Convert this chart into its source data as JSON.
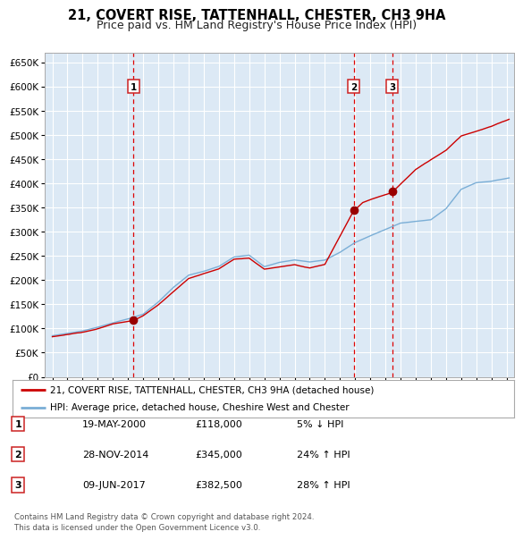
{
  "title": "21, COVERT RISE, TATTENHALL, CHESTER, CH3 9HA",
  "subtitle": "Price paid vs. HM Land Registry's House Price Index (HPI)",
  "title_fontsize": 10.5,
  "subtitle_fontsize": 9,
  "background_color": "#dce9f5",
  "fig_background": "#ffffff",
  "red_line_color": "#cc0000",
  "blue_line_color": "#7aaed6",
  "grid_color": "#ffffff",
  "sale_marker_color": "#990000",
  "vline_color": "#dd0000",
  "ylim": [
    0,
    670000
  ],
  "ytick_values": [
    0,
    50000,
    100000,
    150000,
    200000,
    250000,
    300000,
    350000,
    400000,
    450000,
    500000,
    550000,
    600000,
    650000
  ],
  "ytick_labels": [
    "£0",
    "£50K",
    "£100K",
    "£150K",
    "£200K",
    "£250K",
    "£300K",
    "£350K",
    "£400K",
    "£450K",
    "£500K",
    "£550K",
    "£600K",
    "£650K"
  ],
  "xmin": 1994.5,
  "xmax": 2025.5,
  "sales": [
    {
      "date_num": 2000.37,
      "price": 118000,
      "label": "1"
    },
    {
      "date_num": 2014.9,
      "price": 345000,
      "label": "2"
    },
    {
      "date_num": 2017.44,
      "price": 382500,
      "label": "3"
    }
  ],
  "table_entries": [
    {
      "num": "1",
      "date": "19-MAY-2000",
      "price": "£118,000",
      "pct": "5% ↓ HPI"
    },
    {
      "num": "2",
      "date": "28-NOV-2014",
      "price": "£345,000",
      "pct": "24% ↑ HPI"
    },
    {
      "num": "3",
      "date": "09-JUN-2017",
      "price": "£382,500",
      "pct": "28% ↑ HPI"
    }
  ],
  "legend_entries": [
    "21, COVERT RISE, TATTENHALL, CHESTER, CH3 9HA (detached house)",
    "HPI: Average price, detached house, Cheshire West and Chester"
  ],
  "footer": "Contains HM Land Registry data © Crown copyright and database right 2024.\nThis data is licensed under the Open Government Licence v3.0."
}
